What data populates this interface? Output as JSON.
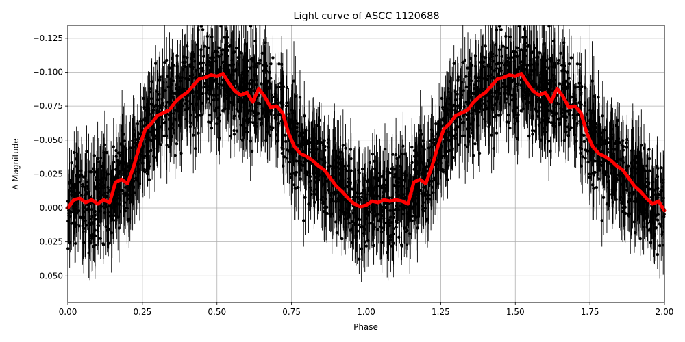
{
  "chart_data": {
    "type": "scatter",
    "title": "Light curve of ASCC 1120688",
    "xlabel": "Phase",
    "ylabel": "Δ Magnitude",
    "xlim": [
      0.0,
      2.0
    ],
    "ylim": [
      0.0695,
      -0.1345
    ],
    "y_inverted": true,
    "grid": true,
    "x_ticks": [
      0.0,
      0.25,
      0.5,
      0.75,
      1.0,
      1.25,
      1.5,
      1.75,
      2.0
    ],
    "x_tick_labels": [
      "0.00",
      "0.25",
      "0.50",
      "0.75",
      "1.00",
      "1.25",
      "1.50",
      "1.75",
      "2.00"
    ],
    "y_ticks": [
      -0.125,
      -0.1,
      -0.075,
      -0.05,
      -0.025,
      0.0,
      0.025,
      0.05
    ],
    "y_tick_labels": [
      "−0.125",
      "−0.100",
      "−0.075",
      "−0.050",
      "−0.025",
      "0.000",
      "0.025",
      "0.050"
    ],
    "colors": {
      "points": "#000000",
      "model": "#ff0000",
      "grid": "#b0b0b0"
    },
    "series": [
      {
        "kind": "model",
        "x": [
          0.0,
          0.02,
          0.04,
          0.06,
          0.08,
          0.1,
          0.12,
          0.14,
          0.16,
          0.18,
          0.2,
          0.22,
          0.24,
          0.26,
          0.28,
          0.3,
          0.32,
          0.34,
          0.36,
          0.38,
          0.4,
          0.42,
          0.44,
          0.46,
          0.48,
          0.5,
          0.52,
          0.54,
          0.56,
          0.58,
          0.6,
          0.62,
          0.64,
          0.66,
          0.68,
          0.7,
          0.72,
          0.74,
          0.76,
          0.78,
          0.8,
          0.82,
          0.84,
          0.86,
          0.88,
          0.9,
          0.92,
          0.94,
          0.96,
          0.98,
          1.0,
          1.02,
          1.04,
          1.06,
          1.08,
          1.1,
          1.12,
          1.14,
          1.16,
          1.18,
          1.2,
          1.22,
          1.24,
          1.26,
          1.28,
          1.3,
          1.32,
          1.34,
          1.36,
          1.38,
          1.4,
          1.42,
          1.44,
          1.46,
          1.48,
          1.5,
          1.52,
          1.54,
          1.56,
          1.58,
          1.6,
          1.62,
          1.64,
          1.66,
          1.68,
          1.7,
          1.72,
          1.74,
          1.76,
          1.78,
          1.8,
          1.82,
          1.84,
          1.86,
          1.88,
          1.9,
          1.92,
          1.94,
          1.96,
          1.98,
          2.0
        ],
        "y": [
          0.0,
          -0.006,
          -0.007,
          -0.004,
          -0.006,
          -0.003,
          -0.006,
          -0.004,
          -0.019,
          -0.021,
          -0.018,
          -0.03,
          -0.045,
          -0.058,
          -0.062,
          -0.068,
          -0.07,
          -0.072,
          -0.078,
          -0.082,
          -0.085,
          -0.09,
          -0.095,
          -0.096,
          -0.098,
          -0.097,
          -0.099,
          -0.092,
          -0.086,
          -0.083,
          -0.085,
          -0.078,
          -0.088,
          -0.082,
          -0.074,
          -0.075,
          -0.07,
          -0.055,
          -0.045,
          -0.04,
          -0.038,
          -0.035,
          -0.031,
          -0.028,
          -0.022,
          -0.016,
          -0.012,
          -0.007,
          -0.003,
          -0.001,
          -0.002,
          -0.005,
          -0.004,
          -0.006,
          -0.005,
          -0.006,
          -0.005,
          -0.003,
          -0.019,
          -0.021,
          -0.018,
          -0.03,
          -0.045,
          -0.058,
          -0.062,
          -0.068,
          -0.07,
          -0.072,
          -0.078,
          -0.082,
          -0.085,
          -0.09,
          -0.095,
          -0.096,
          -0.098,
          -0.097,
          -0.099,
          -0.092,
          -0.086,
          -0.083,
          -0.085,
          -0.078,
          -0.088,
          -0.082,
          -0.074,
          -0.075,
          -0.07,
          -0.055,
          -0.045,
          -0.04,
          -0.038,
          -0.035,
          -0.031,
          -0.028,
          -0.022,
          -0.016,
          -0.012,
          -0.007,
          -0.003,
          -0.005,
          0.002
        ]
      }
    ]
  }
}
